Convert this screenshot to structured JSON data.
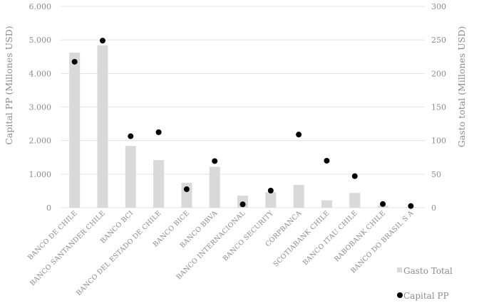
{
  "chart_data": {
    "type": "bar",
    "categories": [
      "BANCO DE CHILE",
      "BANCO SANTANDER CHILE",
      "BANCO BCI",
      "BANCO DEL ESTADO DE CHILE",
      "BANCO BICE",
      "BANCO BBVA",
      "BANCO INTERNACIONAL",
      "BANCO SECURITY",
      "CORPBANCA",
      "SCOTIABANK CHILE",
      "BANCO ITAU CHILE",
      "RABOBANK CHILE",
      "BANCO DO BRASIL S A"
    ],
    "series": [
      {
        "name": "Gasto Total",
        "type": "bar",
        "axis": "right",
        "color": "#d9d9d9",
        "values": [
          231,
          242,
          92,
          71,
          37,
          61,
          18,
          23,
          34,
          11,
          22,
          3,
          1
        ]
      },
      {
        "name": "Capital PP",
        "type": "scatter",
        "axis": "left",
        "color": "#000000",
        "values": [
          4350,
          4980,
          2130,
          2250,
          550,
          1390,
          100,
          510,
          2180,
          1400,
          940,
          110,
          50
        ]
      }
    ],
    "ylabel": "Capital PP (Millones USD)",
    "y2label": "Gasto total (Millones USD)",
    "ylim": [
      0,
      6000
    ],
    "y2lim": [
      0,
      300
    ],
    "yticks": [
      "0",
      "1.000",
      "2.000",
      "3.000",
      "4.000",
      "5.000",
      "6.000"
    ],
    "y2ticks": [
      "0",
      "50",
      "100",
      "150",
      "200",
      "250",
      "300"
    ],
    "grid": true,
    "legend": "bottom-right"
  }
}
